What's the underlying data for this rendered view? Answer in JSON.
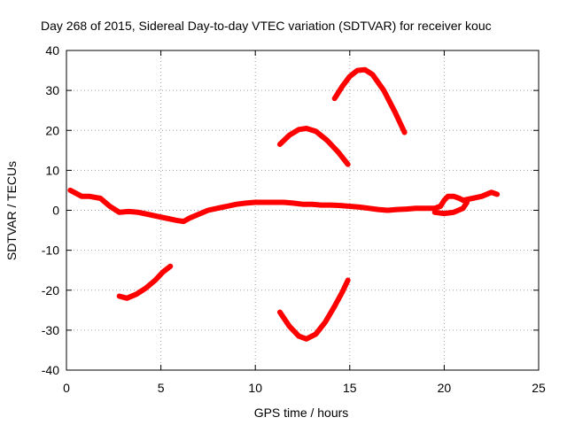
{
  "chart_data": {
    "type": "line",
    "title": "Day 268 of 2015, Sidereal Day-to-day VTEC variation (SDTVAR) for receiver kouc",
    "xlabel": "GPS time / hours",
    "ylabel": "SDTVAR / TECUs",
    "xlim": [
      0,
      25
    ],
    "ylim": [
      -40,
      40
    ],
    "xticks": [
      0,
      5,
      10,
      15,
      20,
      25
    ],
    "yticks": [
      -40,
      -30,
      -20,
      -10,
      0,
      10,
      20,
      30,
      40
    ],
    "grid": true,
    "colors": {
      "series": "#ff0000",
      "axis": "#000000",
      "grid": "#a0a0a0",
      "background": "#ffffff"
    },
    "series": [
      {
        "name": "main-trace",
        "x": [
          0.2,
          0.8,
          1.2,
          1.8,
          2.3,
          2.8,
          3.3,
          3.8,
          4.3,
          4.8,
          5.3,
          5.8,
          6.2,
          6.5,
          7.0,
          7.5,
          8.0,
          8.5,
          9.0,
          9.5,
          10.0,
          10.5,
          11.0,
          11.5,
          12.0,
          12.5,
          13.0,
          13.5,
          14.0,
          14.5,
          15.0,
          15.5,
          16.0,
          16.5,
          17.0,
          17.5,
          18.0,
          18.5,
          19.0,
          19.5,
          19.8,
          20.0,
          20.2,
          20.5,
          20.8,
          21.0,
          21.5,
          22.0,
          22.5,
          22.8
        ],
        "y": [
          5.0,
          3.5,
          3.5,
          3.0,
          1.0,
          -0.5,
          -0.3,
          -0.5,
          -1.0,
          -1.5,
          -2.0,
          -2.5,
          -2.8,
          -2.0,
          -1.0,
          0.0,
          0.5,
          1.0,
          1.5,
          1.8,
          2.0,
          2.0,
          2.0,
          2.0,
          1.8,
          1.5,
          1.5,
          1.3,
          1.3,
          1.2,
          1.0,
          0.8,
          0.5,
          0.2,
          0.0,
          0.2,
          0.3,
          0.5,
          0.5,
          0.5,
          1.0,
          2.5,
          3.5,
          3.5,
          3.0,
          2.5,
          3.0,
          3.5,
          4.5,
          4.0
        ]
      },
      {
        "name": "lower-branch",
        "x": [
          19.5,
          20.0,
          20.5,
          21.0,
          21.2
        ],
        "y": [
          -0.5,
          -0.8,
          -0.5,
          0.5,
          2.0
        ]
      },
      {
        "name": "low-arc-early",
        "x": [
          2.8,
          3.2,
          3.7,
          4.2,
          4.7,
          5.1,
          5.5
        ],
        "y": [
          -21.5,
          -22.0,
          -21.0,
          -19.5,
          -17.5,
          -15.5,
          -14.0
        ]
      },
      {
        "name": "high-arc-mid",
        "x": [
          11.3,
          11.8,
          12.3,
          12.7,
          13.2,
          13.8,
          14.4,
          14.9
        ],
        "y": [
          16.5,
          18.8,
          20.2,
          20.5,
          19.8,
          17.5,
          14.5,
          11.5
        ]
      },
      {
        "name": "low-arc-mid",
        "x": [
          11.3,
          11.8,
          12.3,
          12.7,
          13.2,
          13.7,
          14.2,
          14.6,
          14.9
        ],
        "y": [
          -25.5,
          -29.0,
          -31.5,
          -32.2,
          -31.0,
          -28.0,
          -24.0,
          -20.5,
          -17.5
        ]
      },
      {
        "name": "high-arc-late",
        "x": [
          14.2,
          14.6,
          15.0,
          15.4,
          15.8,
          16.2,
          16.8,
          17.4,
          17.9
        ],
        "y": [
          28.0,
          31.0,
          33.5,
          35.0,
          35.2,
          34.0,
          30.0,
          24.5,
          19.5
        ]
      }
    ]
  }
}
